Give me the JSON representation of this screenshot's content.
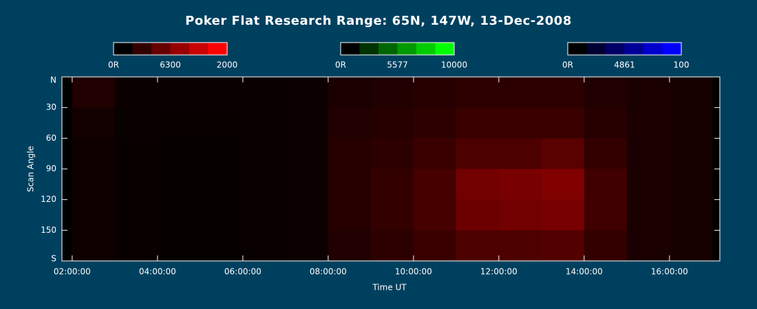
{
  "chart_data": {
    "type": "heatmap",
    "title": "Poker Flat Research Range: 65N, 147W, 13-Dec-2008",
    "xlabel": "Time UT",
    "ylabel": "Scan Angle",
    "color": "#ff0000",
    "xlim": [
      1.76,
      17.18
    ],
    "xticks": [
      {
        "value": 2,
        "label": "02:00:00"
      },
      {
        "value": 4,
        "label": "04:00:00"
      },
      {
        "value": 6,
        "label": "06:00:00"
      },
      {
        "value": 8,
        "label": "08:00:00"
      },
      {
        "value": 10,
        "label": "10:00:00"
      },
      {
        "value": 12,
        "label": "12:00:00"
      },
      {
        "value": 14,
        "label": "14:00:00"
      },
      {
        "value": 16,
        "label": "16:00:00"
      }
    ],
    "ylim": [
      0,
      180
    ],
    "yticks": [
      {
        "value": 0,
        "label": "N"
      },
      30,
      60,
      90,
      120,
      150,
      {
        "value": 180,
        "label": "S"
      }
    ],
    "x_bins": [
      2,
      3,
      4,
      5,
      6,
      7,
      8,
      9,
      10,
      11,
      12,
      13,
      14,
      15,
      16,
      17
    ],
    "y_bins": [
      0,
      30,
      60,
      90,
      120,
      150,
      180
    ],
    "values": [
      [
        250,
        80,
        70,
        70,
        80,
        100,
        200,
        250,
        300,
        350,
        350,
        350,
        250,
        200,
        180
      ],
      [
        150,
        70,
        60,
        60,
        80,
        100,
        250,
        300,
        350,
        450,
        450,
        450,
        300,
        200,
        180
      ],
      [
        120,
        60,
        50,
        50,
        70,
        100,
        300,
        350,
        450,
        600,
        600,
        700,
        400,
        200,
        180
      ],
      [
        120,
        60,
        50,
        50,
        70,
        100,
        300,
        400,
        550,
        900,
        950,
        1000,
        500,
        200,
        180
      ],
      [
        120,
        60,
        50,
        50,
        70,
        100,
        300,
        400,
        550,
        850,
        900,
        950,
        500,
        200,
        180
      ],
      [
        120,
        60,
        50,
        50,
        70,
        100,
        250,
        350,
        450,
        600,
        600,
        650,
        400,
        200,
        180
      ]
    ],
    "colorbars": [
      {
        "name": "6300",
        "color": "#ff0000",
        "ticks": [
          {
            "value": 0,
            "label": "0R"
          },
          2000
        ]
      },
      {
        "name": "5577",
        "color": "#00ff00",
        "ticks": [
          {
            "value": 0,
            "label": "0R"
          },
          10000
        ]
      },
      {
        "name": "4861",
        "color": "#0000ff",
        "ticks": [
          {
            "value": 0,
            "label": "0R"
          },
          100
        ]
      }
    ]
  }
}
